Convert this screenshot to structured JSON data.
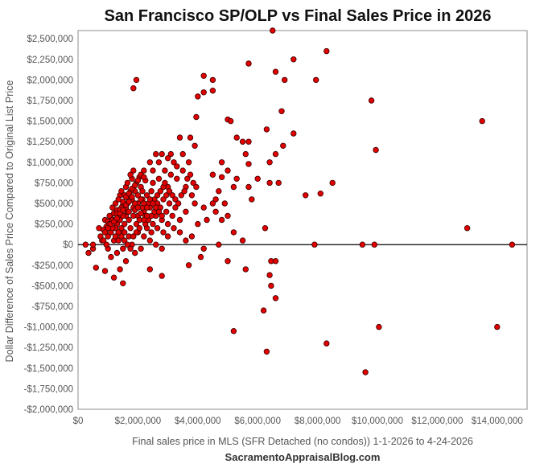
{
  "chart_data": {
    "type": "scatter",
    "title": "San Francisco SP/OLP vs Final Sales Price in 2026",
    "xlabel": "Final sales price in MLS (SFR Detached (no condos)) 1-1-2026 to 4-24-2026",
    "ylabel": "Dollar Difference of Sales Price Compared to Original List Price",
    "credit": "SacramentoAppraisalBlog.com",
    "xlim": [
      0,
      15000000
    ],
    "ylim": [
      -2000000,
      2600000
    ],
    "x_ticks": [
      {
        "value": 0,
        "label": "$0"
      },
      {
        "value": 2000000,
        "label": "$2,000,000"
      },
      {
        "value": 4000000,
        "label": "$4,000,000"
      },
      {
        "value": 6000000,
        "label": "$6,000,000"
      },
      {
        "value": 8000000,
        "label": "$8,000,000"
      },
      {
        "value": 10000000,
        "label": "$10,000,000"
      },
      {
        "value": 12000000,
        "label": "$12,000,000"
      },
      {
        "value": 14000000,
        "label": "$14,000,000"
      }
    ],
    "y_ticks": [
      {
        "value": 2500000,
        "label": "$2,500,000"
      },
      {
        "value": 2250000,
        "label": "$2,250,000"
      },
      {
        "value": 2000000,
        "label": "$2,000,000"
      },
      {
        "value": 1750000,
        "label": "$1,750,000"
      },
      {
        "value": 1500000,
        "label": "$1,500,000"
      },
      {
        "value": 1250000,
        "label": "$1,250,000"
      },
      {
        "value": 1000000,
        "label": "$1,000,000"
      },
      {
        "value": 750000,
        "label": "$750,000"
      },
      {
        "value": 500000,
        "label": "$500,000"
      },
      {
        "value": 250000,
        "label": "$250,000"
      },
      {
        "value": 0,
        "label": "$0"
      },
      {
        "value": -250000,
        "label": "-$250,000"
      },
      {
        "value": -500000,
        "label": "-$500,000"
      },
      {
        "value": -750000,
        "label": "-$750,000"
      },
      {
        "value": -1000000,
        "label": "-$1,000,000"
      },
      {
        "value": -1250000,
        "label": "-$1,250,000"
      },
      {
        "value": -1500000,
        "label": "-$1,500,000"
      },
      {
        "value": -1750000,
        "label": "-$1,750,000"
      },
      {
        "value": -2000000,
        "label": "-$2,000,000"
      }
    ],
    "grid": false,
    "zero_line": true,
    "marker_color": "#e00000",
    "marker_edge": "#3a0000",
    "points": [
      [
        6500000,
        2600000
      ],
      [
        8300000,
        2350000
      ],
      [
        7200000,
        2250000
      ],
      [
        5700000,
        2200000
      ],
      [
        6600000,
        2100000
      ],
      [
        6900000,
        2000000
      ],
      [
        7950000,
        2000000
      ],
      [
        1950000,
        2000000
      ],
      [
        1850000,
        1900000
      ],
      [
        4200000,
        2050000
      ],
      [
        4500000,
        2000000
      ],
      [
        4500000,
        1870000
      ],
      [
        4200000,
        1850000
      ],
      [
        4000000,
        1800000
      ],
      [
        9800000,
        1750000
      ],
      [
        6800000,
        1620000
      ],
      [
        3950000,
        1550000
      ],
      [
        5000000,
        1520000
      ],
      [
        5100000,
        1500000
      ],
      [
        13500000,
        1500000
      ],
      [
        6300000,
        1400000
      ],
      [
        7200000,
        1350000
      ],
      [
        3750000,
        1300000
      ],
      [
        5300000,
        1300000
      ],
      [
        5500000,
        1250000
      ],
      [
        5700000,
        1250000
      ],
      [
        6850000,
        1200000
      ],
      [
        9950000,
        1150000
      ],
      [
        5600000,
        1100000
      ],
      [
        6600000,
        1100000
      ],
      [
        4800000,
        1000000
      ],
      [
        5700000,
        980000
      ],
      [
        6400000,
        1000000
      ],
      [
        5000000,
        900000
      ],
      [
        5300000,
        800000
      ],
      [
        6000000,
        800000
      ],
      [
        4500000,
        850000
      ],
      [
        4800000,
        820000
      ],
      [
        6400000,
        750000
      ],
      [
        6700000,
        750000
      ],
      [
        8500000,
        750000
      ],
      [
        5700000,
        700000
      ],
      [
        5200000,
        700000
      ],
      [
        4700000,
        650000
      ],
      [
        7600000,
        600000
      ],
      [
        8100000,
        620000
      ],
      [
        4600000,
        550000
      ],
      [
        5800000,
        550000
      ],
      [
        4500000,
        500000
      ],
      [
        4900000,
        500000
      ],
      [
        4200000,
        450000
      ],
      [
        4600000,
        400000
      ],
      [
        5000000,
        350000
      ],
      [
        4800000,
        300000
      ],
      [
        4300000,
        300000
      ],
      [
        4000000,
        250000
      ],
      [
        6250000,
        200000
      ],
      [
        13000000,
        200000
      ],
      [
        5200000,
        150000
      ],
      [
        5500000,
        50000
      ],
      [
        4700000,
        0
      ],
      [
        7900000,
        0
      ],
      [
        9500000,
        0
      ],
      [
        9900000,
        0
      ],
      [
        14500000,
        0
      ],
      [
        4200000,
        -50000
      ],
      [
        4100000,
        -150000
      ],
      [
        3700000,
        -250000
      ],
      [
        5000000,
        -200000
      ],
      [
        5600000,
        -300000
      ],
      [
        6450000,
        -200000
      ],
      [
        6600000,
        -200000
      ],
      [
        6400000,
        -370000
      ],
      [
        6450000,
        -500000
      ],
      [
        6600000,
        -650000
      ],
      [
        6200000,
        -800000
      ],
      [
        5200000,
        -1050000
      ],
      [
        10050000,
        -1000000
      ],
      [
        14000000,
        -1000000
      ],
      [
        8300000,
        -1200000
      ],
      [
        6300000,
        -1300000
      ],
      [
        9600000,
        -1550000
      ],
      [
        1500000,
        -470000
      ],
      [
        1200000,
        -400000
      ],
      [
        900000,
        -320000
      ],
      [
        2800000,
        -380000
      ],
      [
        1400000,
        -300000
      ],
      [
        2400000,
        -300000
      ],
      [
        600000,
        -280000
      ],
      [
        350000,
        -100000
      ],
      [
        500000,
        -50000
      ],
      [
        500000,
        0
      ],
      [
        250000,
        0
      ],
      [
        800000,
        50000
      ],
      [
        1000000,
        100000
      ],
      [
        1100000,
        150000
      ],
      [
        700000,
        200000
      ],
      [
        1300000,
        250000
      ],
      [
        900000,
        300000
      ],
      [
        1600000,
        350000
      ],
      [
        2100000,
        700000
      ],
      [
        2200000,
        900000
      ],
      [
        2400000,
        1000000
      ],
      [
        2600000,
        1100000
      ],
      [
        2800000,
        1100000
      ],
      [
        3000000,
        1050000
      ],
      [
        3200000,
        1000000
      ],
      [
        3400000,
        1300000
      ],
      [
        3500000,
        900000
      ],
      [
        3300000,
        800000
      ],
      [
        3600000,
        700000
      ],
      [
        3800000,
        600000
      ],
      [
        3900000,
        500000
      ],
      [
        3600000,
        400000
      ],
      [
        3400000,
        300000
      ],
      [
        3700000,
        1000000
      ],
      [
        3900000,
        1200000
      ],
      [
        3500000,
        1100000
      ],
      [
        3100000,
        850000
      ],
      [
        3000000,
        700000
      ],
      [
        2900000,
        900000
      ],
      [
        2700000,
        800000
      ],
      [
        2500000,
        750000
      ],
      [
        2300000,
        600000
      ],
      [
        2000000,
        500000
      ],
      [
        1800000,
        800000
      ],
      [
        1900000,
        650000
      ],
      [
        1700000,
        550000
      ],
      [
        1500000,
        480000
      ],
      [
        1300000,
        420000
      ],
      [
        1200000,
        380000
      ],
      [
        1100000,
        320000
      ],
      [
        1000000,
        280000
      ],
      [
        950000,
        220000
      ],
      [
        850000,
        180000
      ],
      [
        1400000,
        600000
      ],
      [
        1600000,
        700000
      ],
      [
        1750000,
        650000
      ],
      [
        2050000,
        820000
      ],
      [
        2250000,
        780000
      ],
      [
        2450000,
        650000
      ],
      [
        2650000,
        600000
      ],
      [
        2850000,
        550000
      ],
      [
        3050000,
        500000
      ],
      [
        3250000,
        450000
      ],
      [
        2000000,
        150000
      ],
      [
        2200000,
        100000
      ],
      [
        2400000,
        50000
      ],
      [
        2600000,
        0
      ],
      [
        2800000,
        -50000
      ],
      [
        3000000,
        100000
      ],
      [
        3200000,
        200000
      ],
      [
        3400000,
        150000
      ],
      [
        3600000,
        50000
      ],
      [
        3800000,
        100000
      ],
      [
        1800000,
        0
      ],
      [
        1900000,
        -100000
      ],
      [
        2100000,
        -50000
      ],
      [
        2300000,
        200000
      ],
      [
        2500000,
        250000
      ],
      [
        1500000,
        -50000
      ],
      [
        1700000,
        100000
      ],
      [
        1300000,
        -100000
      ],
      [
        1100000,
        -150000
      ],
      [
        1600000,
        -200000
      ],
      [
        1000000,
        -50000
      ],
      [
        1200000,
        50000
      ],
      [
        1400000,
        150000
      ],
      [
        1700000,
        300000
      ],
      [
        2000000,
        350000
      ],
      [
        2200000,
        400000
      ],
      [
        2400000,
        450000
      ],
      [
        2600000,
        350000
      ],
      [
        2800000,
        300000
      ],
      [
        3000000,
        250000
      ],
      [
        1450000,
        200000
      ],
      [
        1550000,
        250000
      ],
      [
        1650000,
        400000
      ],
      [
        1850000,
        450000
      ],
      [
        2150000,
        550000
      ],
      [
        2350000,
        500000
      ],
      [
        2550000,
        550000
      ],
      [
        2750000,
        450000
      ],
      [
        2950000,
        400000
      ],
      [
        3150000,
        350000
      ],
      [
        1250000,
        200000
      ],
      [
        1350000,
        350000
      ],
      [
        1450000,
        450000
      ],
      [
        1650000,
        500000
      ],
      [
        1850000,
        350000
      ],
      [
        2050000,
        300000
      ],
      [
        2250000,
        250000
      ],
      [
        2450000,
        150000
      ],
      [
        2650000,
        200000
      ],
      [
        2850000,
        150000
      ],
      [
        750000,
        100000
      ],
      [
        850000,
        50000
      ],
      [
        950000,
        0
      ],
      [
        1050000,
        250000
      ],
      [
        1150000,
        200000
      ],
      [
        1250000,
        100000
      ],
      [
        1350000,
        50000
      ],
      [
        1550000,
        150000
      ],
      [
        1750000,
        200000
      ],
      [
        1950000,
        250000
      ],
      [
        1150000,
        450000
      ],
      [
        1250000,
        500000
      ],
      [
        1350000,
        550000
      ],
      [
        1450000,
        650000
      ],
      [
        1550000,
        600000
      ],
      [
        1650000,
        750000
      ],
      [
        1750000,
        850000
      ],
      [
        1850000,
        900000
      ],
      [
        1950000,
        750000
      ],
      [
        2150000,
        650000
      ],
      [
        1050000,
        350000
      ],
      [
        1150000,
        300000
      ],
      [
        1250000,
        300000
      ],
      [
        1350000,
        150000
      ],
      [
        1450000,
        100000
      ],
      [
        1550000,
        50000
      ],
      [
        1650000,
        0
      ],
      [
        1750000,
        -50000
      ],
      [
        1850000,
        100000
      ],
      [
        1950000,
        150000
      ],
      [
        2050000,
        200000
      ],
      [
        2150000,
        450000
      ],
      [
        2250000,
        350000
      ],
      [
        2350000,
        300000
      ],
      [
        2450000,
        350000
      ],
      [
        2550000,
        400000
      ],
      [
        2650000,
        500000
      ],
      [
        2750000,
        650000
      ],
      [
        2850000,
        700000
      ],
      [
        2950000,
        600000
      ],
      [
        3050000,
        650000
      ],
      [
        3150000,
        600000
      ],
      [
        3250000,
        550000
      ],
      [
        3350000,
        500000
      ],
      [
        3450000,
        600000
      ],
      [
        3550000,
        650000
      ],
      [
        3650000,
        800000
      ],
      [
        3750000,
        850000
      ],
      [
        3850000,
        750000
      ],
      [
        3950000,
        700000
      ],
      [
        1400000,
        300000
      ],
      [
        1500000,
        350000
      ],
      [
        1600000,
        450000
      ],
      [
        1700000,
        400000
      ],
      [
        1800000,
        550000
      ],
      [
        1900000,
        500000
      ],
      [
        2000000,
        600000
      ],
      [
        2100000,
        550000
      ],
      [
        2200000,
        500000
      ],
      [
        2300000,
        450000
      ],
      [
        2400000,
        550000
      ],
      [
        2500000,
        500000
      ],
      [
        2600000,
        450000
      ],
      [
        2700000,
        400000
      ],
      [
        2800000,
        350000
      ],
      [
        1300000,
        380000
      ],
      [
        1400000,
        420000
      ],
      [
        1500000,
        520000
      ],
      [
        1600000,
        580000
      ],
      [
        1700000,
        620000
      ],
      [
        1800000,
        680000
      ],
      [
        1900000,
        720000
      ],
      [
        2000000,
        780000
      ],
      [
        2100000,
        850000
      ],
      [
        2200000,
        820000
      ],
      [
        900000,
        150000
      ],
      [
        1000000,
        200000
      ],
      [
        1100000,
        250000
      ],
      [
        1200000,
        280000
      ],
      [
        1300000,
        320000
      ],
      [
        1400000,
        380000
      ],
      [
        1500000,
        420000
      ],
      [
        1600000,
        480000
      ],
      [
        1700000,
        520000
      ],
      [
        1800000,
        580000
      ],
      [
        1900000,
        420000
      ],
      [
        2000000,
        450000
      ],
      [
        2100000,
        380000
      ],
      [
        2200000,
        300000
      ],
      [
        2300000,
        350000
      ],
      [
        3100000,
        1100000
      ],
      [
        2700000,
        1000000
      ],
      [
        2500000,
        900000
      ],
      [
        3300000,
        950000
      ],
      [
        2900000,
        750000
      ]
    ]
  }
}
